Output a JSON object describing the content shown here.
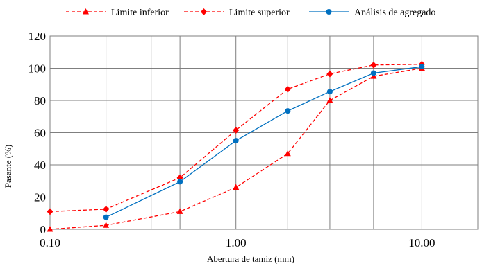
{
  "chart_data": {
    "type": "line",
    "xscale": "log",
    "xlim": [
      0.1,
      20
    ],
    "ylim": [
      0,
      120
    ],
    "xlabel": "Abertura de tamiz (mm)",
    "ylabel": "Pasante (%)",
    "x_ticks": [
      0.1,
      1,
      10
    ],
    "x_tick_labels": [
      "0.10",
      "1.00",
      "10.00"
    ],
    "x_gridlines": [
      0.1,
      0.2,
      0.35,
      0.5,
      1,
      1.9,
      3.2,
      5.5,
      10,
      20
    ],
    "y_ticks": [
      0,
      20,
      40,
      60,
      80,
      100,
      120
    ],
    "y_tick_labels": [
      "0",
      "20",
      "40",
      "60",
      "80",
      "100",
      "120"
    ],
    "grid": true,
    "legend_position": "top",
    "series": [
      {
        "name": "Limite  inferior",
        "color": "#ff0000",
        "line_style": "dashed",
        "marker": "triangle",
        "x": [
          0.1,
          0.2,
          0.5,
          1.0,
          1.9,
          3.2,
          5.5,
          10
        ],
        "y": [
          0,
          2.5,
          11,
          26,
          47,
          80,
          95,
          100
        ]
      },
      {
        "name": "Limite  superior",
        "color": "#ff0000",
        "line_style": "dashed",
        "marker": "diamond",
        "x": [
          0.1,
          0.2,
          0.5,
          1.0,
          1.9,
          3.2,
          5.5,
          10
        ],
        "y": [
          11,
          12.5,
          32,
          61.5,
          87,
          96.5,
          102,
          102.5
        ]
      },
      {
        "name": "Análisis de agregado",
        "color": "#0070c0",
        "line_style": "solid",
        "marker": "circle",
        "x": [
          0.2,
          0.5,
          1.0,
          1.9,
          3.2,
          5.5,
          10
        ],
        "y": [
          7.5,
          29.5,
          55,
          73.5,
          85.5,
          97,
          101
        ]
      }
    ]
  }
}
